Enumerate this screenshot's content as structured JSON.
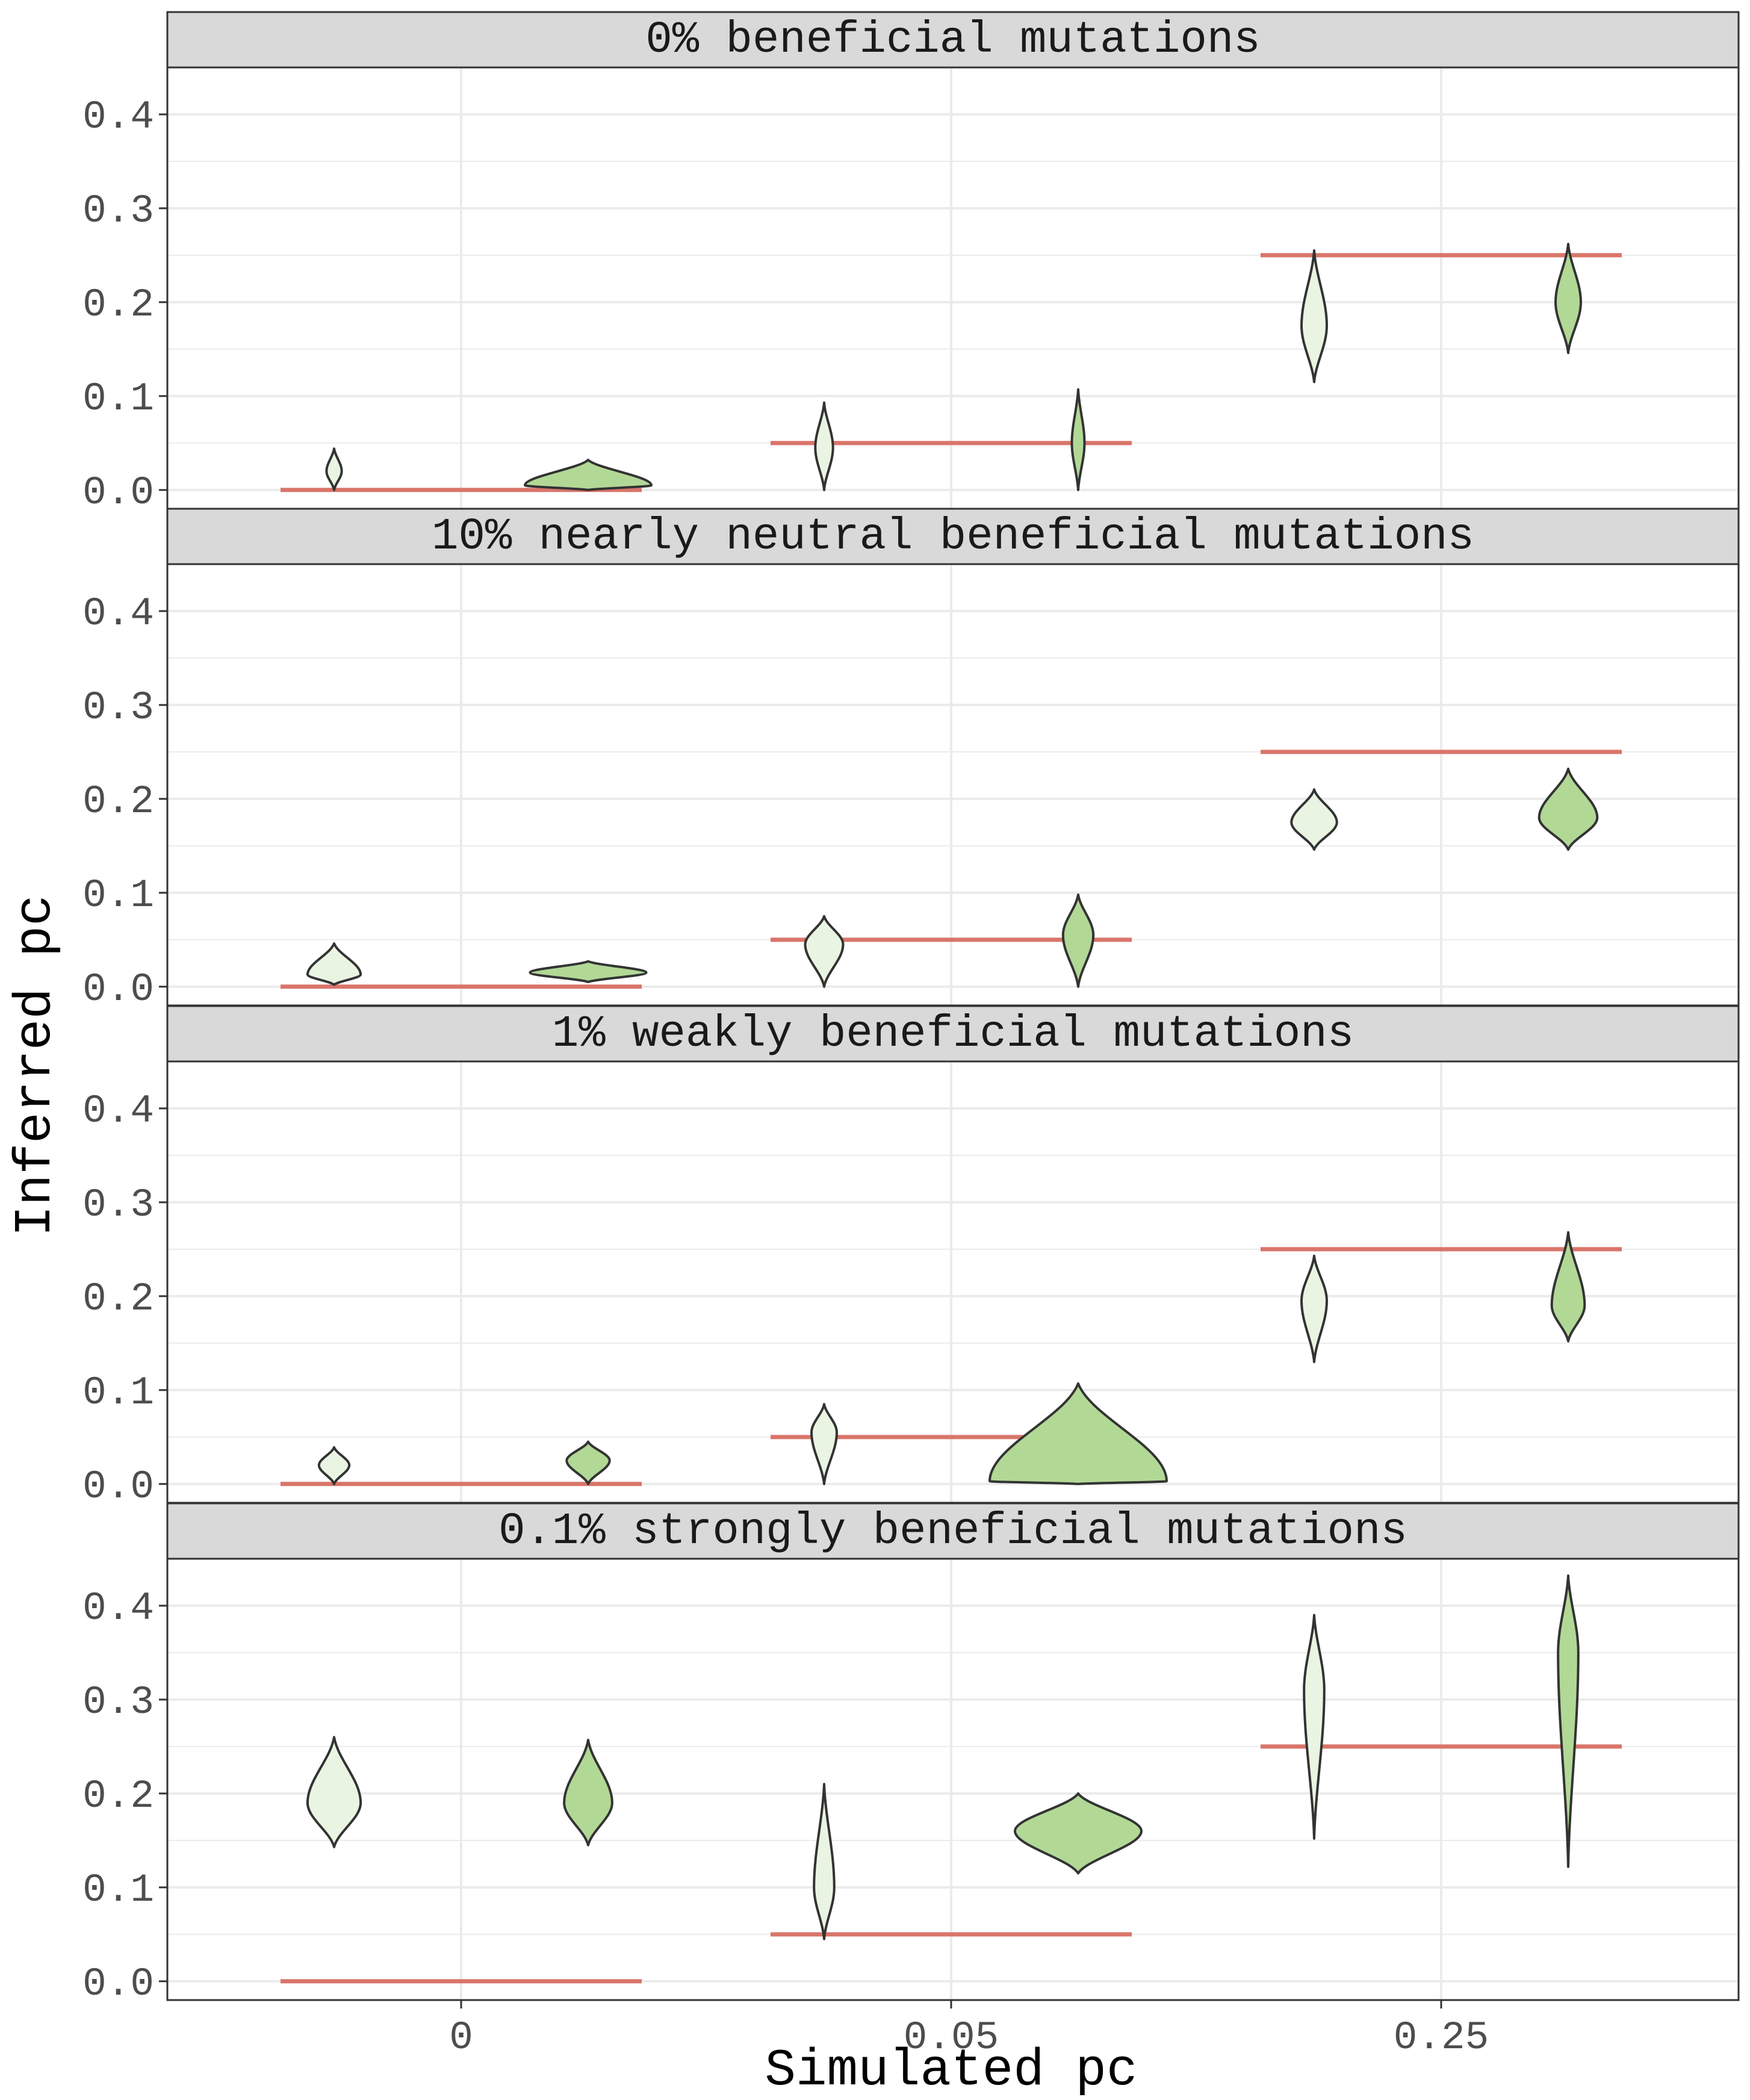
{
  "chart_data": {
    "type": "violin",
    "xlabel": "Simulated pc",
    "ylabel": "Inferred pc",
    "categories": [
      "0",
      "0.05",
      "0.25"
    ],
    "ylim": [
      -0.02,
      0.45
    ],
    "yticks": [
      0.0,
      0.1,
      0.2,
      0.3,
      0.4
    ],
    "ytick_labels": [
      "0.0",
      "0.1",
      "0.2",
      "0.3",
      "0.4"
    ],
    "grid": true,
    "colors": {
      "light_violin": "#eaf4e2",
      "dark_violin": "#b2d896",
      "outline": "#333333",
      "true_value_line": "#d9756a",
      "strip_background": "#d9d9d9",
      "grid": "#ebebeb"
    },
    "panels": [
      {
        "title": "0% beneficial mutations",
        "true_values": [
          0,
          0.05,
          0.25
        ],
        "violins": [
          {
            "category": "0",
            "shade": "light",
            "min": 0.0,
            "max": 0.044,
            "mode": 0.02,
            "width": 0.06
          },
          {
            "category": "0",
            "shade": "dark",
            "min": 0.0,
            "max": 0.032,
            "mode": 0.005,
            "width": 0.5
          },
          {
            "category": "0.05",
            "shade": "light",
            "min": 0.0,
            "max": 0.093,
            "mode": 0.045,
            "width": 0.07
          },
          {
            "category": "0.05",
            "shade": "dark",
            "min": 0.0,
            "max": 0.107,
            "mode": 0.05,
            "width": 0.05
          },
          {
            "category": "0.25",
            "shade": "light",
            "min": 0.115,
            "max": 0.255,
            "mode": 0.175,
            "width": 0.1
          },
          {
            "category": "0.25",
            "shade": "dark",
            "min": 0.146,
            "max": 0.262,
            "mode": 0.2,
            "width": 0.1
          }
        ]
      },
      {
        "title": "10% nearly neutral beneficial mutations",
        "true_values": [
          0,
          0.05,
          0.25
        ],
        "violins": [
          {
            "category": "0",
            "shade": "light",
            "min": 0.002,
            "max": 0.046,
            "mode": 0.013,
            "width": 0.21
          },
          {
            "category": "0",
            "shade": "dark",
            "min": 0.005,
            "max": 0.027,
            "mode": 0.015,
            "width": 0.46
          },
          {
            "category": "0.05",
            "shade": "light",
            "min": 0.0,
            "max": 0.075,
            "mode": 0.045,
            "width": 0.15
          },
          {
            "category": "0.05",
            "shade": "dark",
            "min": 0.0,
            "max": 0.098,
            "mode": 0.055,
            "width": 0.12
          },
          {
            "category": "0.25",
            "shade": "light",
            "min": 0.146,
            "max": 0.21,
            "mode": 0.175,
            "width": 0.18
          },
          {
            "category": "0.25",
            "shade": "dark",
            "min": 0.146,
            "max": 0.232,
            "mode": 0.18,
            "width": 0.23
          }
        ]
      },
      {
        "title": "1% weakly beneficial mutations",
        "true_values": [
          0,
          0.05,
          0.25
        ],
        "violins": [
          {
            "category": "0",
            "shade": "light",
            "min": 0.0,
            "max": 0.039,
            "mode": 0.02,
            "width": 0.12
          },
          {
            "category": "0",
            "shade": "dark",
            "min": 0.0,
            "max": 0.045,
            "mode": 0.025,
            "width": 0.17
          },
          {
            "category": "0.05",
            "shade": "light",
            "min": 0.0,
            "max": 0.085,
            "mode": 0.055,
            "width": 0.1
          },
          {
            "category": "0.05",
            "shade": "dark",
            "min": 0.0,
            "max": 0.107,
            "mode": 0.003,
            "width": 0.7
          },
          {
            "category": "0.25",
            "shade": "light",
            "min": 0.13,
            "max": 0.243,
            "mode": 0.195,
            "width": 0.1
          },
          {
            "category": "0.25",
            "shade": "dark",
            "min": 0.152,
            "max": 0.268,
            "mode": 0.19,
            "width": 0.13
          }
        ]
      },
      {
        "title": "0.1% strongly beneficial mutations",
        "true_values": [
          0,
          0.05,
          0.25
        ],
        "violins": [
          {
            "category": "0",
            "shade": "light",
            "min": 0.143,
            "max": 0.26,
            "mode": 0.19,
            "width": 0.21
          },
          {
            "category": "0",
            "shade": "dark",
            "min": 0.145,
            "max": 0.257,
            "mode": 0.19,
            "width": 0.19
          },
          {
            "category": "0.05",
            "shade": "light",
            "min": 0.045,
            "max": 0.21,
            "mode": 0.1,
            "width": 0.08
          },
          {
            "category": "0.05",
            "shade": "dark",
            "min": 0.115,
            "max": 0.2,
            "mode": 0.16,
            "width": 0.5
          },
          {
            "category": "0.25",
            "shade": "light",
            "min": 0.152,
            "max": 0.39,
            "mode": 0.31,
            "width": 0.08
          },
          {
            "category": "0.25",
            "shade": "dark",
            "min": 0.122,
            "max": 0.432,
            "mode": 0.35,
            "width": 0.08
          }
        ]
      }
    ]
  }
}
